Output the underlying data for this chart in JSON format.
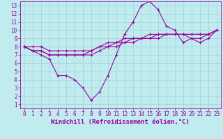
{
  "xlabel": "Windchill (Refroidissement éolien,°C)",
  "bg_color": "#c0ecf0",
  "grid_color": "#a0d0d8",
  "line_color": "#990099",
  "xlim": [
    -0.5,
    23.5
  ],
  "ylim": [
    0.5,
    13.5
  ],
  "xticks": [
    0,
    1,
    2,
    3,
    4,
    5,
    6,
    7,
    8,
    9,
    10,
    11,
    12,
    13,
    14,
    15,
    16,
    17,
    18,
    19,
    20,
    21,
    22,
    23
  ],
  "yticks": [
    1,
    2,
    3,
    4,
    5,
    6,
    7,
    8,
    9,
    10,
    11,
    12,
    13
  ],
  "line1_x": [
    0,
    1,
    2,
    3,
    4,
    5,
    6,
    7,
    8,
    9,
    10,
    11,
    12,
    13,
    14,
    15,
    16,
    17,
    18,
    19,
    20,
    21,
    22,
    23
  ],
  "line1_y": [
    8,
    7.5,
    7,
    6.5,
    4.5,
    4.5,
    4,
    3,
    1.5,
    2.5,
    4.5,
    7,
    9.5,
    11,
    13,
    13.5,
    12.5,
    10.5,
    10,
    8.5,
    9,
    8.5,
    9,
    10
  ],
  "line2_x": [
    0,
    1,
    2,
    3,
    4,
    5,
    6,
    7,
    8,
    9,
    10,
    11,
    12,
    13,
    14,
    15,
    16,
    17,
    18,
    19,
    20,
    21,
    22,
    23
  ],
  "line2_y": [
    8,
    7.5,
    7.5,
    7,
    7,
    7,
    7,
    7,
    7,
    7.5,
    8,
    8,
    8.5,
    8.5,
    9,
    9,
    9,
    9.5,
    9.5,
    9.5,
    9.5,
    9.5,
    9.5,
    10
  ],
  "line3_x": [
    0,
    1,
    2,
    3,
    4,
    5,
    6,
    7,
    8,
    9,
    10,
    11,
    12,
    13,
    14,
    15,
    16,
    17,
    18,
    19,
    20,
    21,
    22,
    23
  ],
  "line3_y": [
    8,
    7.5,
    7.5,
    7,
    7,
    7,
    7,
    7,
    7.5,
    8,
    8.5,
    8.5,
    9,
    9,
    9,
    9.5,
    9.5,
    9.5,
    9.5,
    9.5,
    9,
    9,
    9.5,
    10
  ],
  "line4_x": [
    0,
    1,
    2,
    3,
    4,
    5,
    6,
    7,
    8,
    9,
    10,
    11,
    12,
    13,
    14,
    15,
    16,
    17,
    18,
    19,
    20,
    21,
    22,
    23
  ],
  "line4_y": [
    8,
    8,
    8,
    7.5,
    7.5,
    7.5,
    7.5,
    7.5,
    7.5,
    8,
    8,
    8.5,
    8.5,
    9,
    9,
    9,
    9.5,
    9.5,
    9.5,
    9.5,
    9.5,
    9.5,
    9.5,
    10
  ],
  "label_fontsize": 5.5,
  "xlabel_fontsize": 6.5
}
